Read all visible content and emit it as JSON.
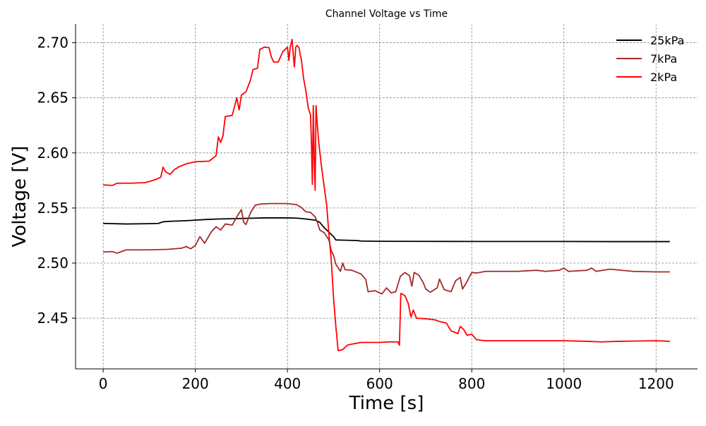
{
  "chart_data": {
    "type": "line",
    "title": "Channel Voltage vs Time",
    "xlabel": "Time [s]",
    "ylabel": "Voltage [V]",
    "xlim": [
      -60,
      1290
    ],
    "ylim": [
      2.404,
      2.717
    ],
    "xticks": [
      0,
      200,
      400,
      600,
      800,
      1000,
      1200
    ],
    "xtick_labels": [
      "0",
      "200",
      "400",
      "600",
      "800",
      "1000",
      "1200"
    ],
    "yticks": [
      2.45,
      2.5,
      2.55,
      2.6,
      2.65,
      2.7
    ],
    "ytick_labels": [
      "2.45",
      "2.50",
      "2.55",
      "2.60",
      "2.65",
      "2.70"
    ],
    "grid": true,
    "legend_position": "top-right",
    "series": [
      {
        "name": "25kPa",
        "color": "#000000",
        "points": [
          [
            0,
            2.536
          ],
          [
            50,
            2.5355
          ],
          [
            100,
            2.5358
          ],
          [
            120,
            2.536
          ],
          [
            130,
            2.5375
          ],
          [
            150,
            2.538
          ],
          [
            180,
            2.5385
          ],
          [
            200,
            2.539
          ],
          [
            220,
            2.5395
          ],
          [
            250,
            2.54
          ],
          [
            300,
            2.5405
          ],
          [
            350,
            2.541
          ],
          [
            380,
            2.541
          ],
          [
            400,
            2.541
          ],
          [
            420,
            2.5408
          ],
          [
            440,
            2.54
          ],
          [
            460,
            2.539
          ],
          [
            470,
            2.537
          ],
          [
            480,
            2.532
          ],
          [
            490,
            2.528
          ],
          [
            495,
            2.526
          ],
          [
            500,
            2.524
          ],
          [
            505,
            2.521
          ],
          [
            520,
            2.5208
          ],
          [
            550,
            2.5205
          ],
          [
            560,
            2.52
          ],
          [
            600,
            2.5198
          ],
          [
            700,
            2.5197
          ],
          [
            800,
            2.5196
          ],
          [
            900,
            2.5196
          ],
          [
            1000,
            2.5196
          ],
          [
            1100,
            2.5195
          ],
          [
            1200,
            2.5195
          ],
          [
            1230,
            2.5195
          ]
        ]
      },
      {
        "name": "7kPa",
        "color": "#a52a2a",
        "points": [
          [
            0,
            2.51
          ],
          [
            20,
            2.5105
          ],
          [
            30,
            2.509
          ],
          [
            40,
            2.5105
          ],
          [
            50,
            2.512
          ],
          [
            100,
            2.512
          ],
          [
            140,
            2.5125
          ],
          [
            170,
            2.5135
          ],
          [
            180,
            2.515
          ],
          [
            190,
            2.513
          ],
          [
            200,
            2.516
          ],
          [
            210,
            2.524
          ],
          [
            220,
            2.518
          ],
          [
            235,
            2.5285
          ],
          [
            245,
            2.533
          ],
          [
            255,
            2.53
          ],
          [
            265,
            2.5355
          ],
          [
            280,
            2.5345
          ],
          [
            290,
            2.542
          ],
          [
            300,
            2.5485
          ],
          [
            305,
            2.537
          ],
          [
            310,
            2.535
          ],
          [
            320,
            2.546
          ],
          [
            330,
            2.5525
          ],
          [
            340,
            2.5535
          ],
          [
            360,
            2.554
          ],
          [
            400,
            2.554
          ],
          [
            420,
            2.553
          ],
          [
            430,
            2.5505
          ],
          [
            440,
            2.5465
          ],
          [
            450,
            2.546
          ],
          [
            460,
            2.542
          ],
          [
            465,
            2.537
          ],
          [
            470,
            2.53
          ],
          [
            480,
            2.5275
          ],
          [
            490,
            2.521
          ],
          [
            495,
            2.511
          ],
          [
            500,
            2.507
          ],
          [
            505,
            2.499
          ],
          [
            515,
            2.4925
          ],
          [
            520,
            2.5
          ],
          [
            525,
            2.494
          ],
          [
            540,
            2.4935
          ],
          [
            560,
            2.49
          ],
          [
            570,
            2.485
          ],
          [
            575,
            2.474
          ],
          [
            590,
            2.475
          ],
          [
            605,
            2.472
          ],
          [
            615,
            2.4775
          ],
          [
            625,
            2.473
          ],
          [
            635,
            2.474
          ],
          [
            645,
            2.488
          ],
          [
            655,
            2.4915
          ],
          [
            665,
            2.4885
          ],
          [
            670,
            2.479
          ],
          [
            675,
            2.4915
          ],
          [
            685,
            2.489
          ],
          [
            695,
            2.482
          ],
          [
            700,
            2.4765
          ],
          [
            710,
            2.4735
          ],
          [
            725,
            2.4775
          ],
          [
            730,
            2.4855
          ],
          [
            740,
            2.476
          ],
          [
            755,
            2.474
          ],
          [
            765,
            2.484
          ],
          [
            775,
            2.487
          ],
          [
            780,
            2.4765
          ],
          [
            790,
            2.4835
          ],
          [
            800,
            2.4915
          ],
          [
            810,
            2.491
          ],
          [
            830,
            2.4925
          ],
          [
            900,
            2.4925
          ],
          [
            940,
            2.4935
          ],
          [
            960,
            2.4925
          ],
          [
            990,
            2.4935
          ],
          [
            1000,
            2.4955
          ],
          [
            1010,
            2.4925
          ],
          [
            1050,
            2.4935
          ],
          [
            1060,
            2.4955
          ],
          [
            1070,
            2.4925
          ],
          [
            1100,
            2.4945
          ],
          [
            1150,
            2.4925
          ],
          [
            1200,
            2.492
          ],
          [
            1230,
            2.492
          ]
        ]
      },
      {
        "name": "2kPa",
        "color": "#ff0000",
        "points": [
          [
            0,
            2.571
          ],
          [
            20,
            2.5705
          ],
          [
            30,
            2.5725
          ],
          [
            60,
            2.5725
          ],
          [
            90,
            2.573
          ],
          [
            100,
            2.574
          ],
          [
            115,
            2.576
          ],
          [
            125,
            2.578
          ],
          [
            130,
            2.587
          ],
          [
            135,
            2.583
          ],
          [
            145,
            2.5805
          ],
          [
            155,
            2.585
          ],
          [
            165,
            2.5875
          ],
          [
            180,
            2.59
          ],
          [
            200,
            2.592
          ],
          [
            230,
            2.5925
          ],
          [
            245,
            2.5975
          ],
          [
            250,
            2.6145
          ],
          [
            255,
            2.6095
          ],
          [
            260,
            2.6155
          ],
          [
            265,
            2.633
          ],
          [
            280,
            2.634
          ],
          [
            285,
            2.642
          ],
          [
            290,
            2.65
          ],
          [
            295,
            2.639
          ],
          [
            300,
            2.6525
          ],
          [
            310,
            2.6555
          ],
          [
            320,
            2.6665
          ],
          [
            325,
            2.6755
          ],
          [
            335,
            2.677
          ],
          [
            340,
            2.694
          ],
          [
            350,
            2.696
          ],
          [
            360,
            2.6955
          ],
          [
            365,
            2.687
          ],
          [
            370,
            2.6825
          ],
          [
            380,
            2.6825
          ],
          [
            390,
            2.692
          ],
          [
            400,
            2.696
          ],
          [
            403,
            2.684
          ],
          [
            406,
            2.696
          ],
          [
            410,
            2.703
          ],
          [
            413,
            2.687
          ],
          [
            415,
            2.678
          ],
          [
            418,
            2.696
          ],
          [
            421,
            2.6975
          ],
          [
            425,
            2.6955
          ],
          [
            428,
            2.6885
          ],
          [
            430,
            2.685
          ],
          [
            435,
            2.6675
          ],
          [
            440,
            2.656
          ],
          [
            445,
            2.641
          ],
          [
            450,
            2.6345
          ],
          [
            452,
            2.609
          ],
          [
            454,
            2.5715
          ],
          [
            456,
            2.643
          ],
          [
            458,
            2.595
          ],
          [
            460,
            2.566
          ],
          [
            462,
            2.643
          ],
          [
            464,
            2.6295
          ],
          [
            468,
            2.609
          ],
          [
            473,
            2.5905
          ],
          [
            478,
            2.5745
          ],
          [
            485,
            2.553
          ],
          [
            490,
            2.526
          ],
          [
            495,
            2.503
          ],
          [
            500,
            2.4685
          ],
          [
            505,
            2.4425
          ],
          [
            508,
            2.4295
          ],
          [
            510,
            2.4205
          ],
          [
            520,
            2.4215
          ],
          [
            530,
            2.4255
          ],
          [
            540,
            2.4265
          ],
          [
            560,
            2.428
          ],
          [
            600,
            2.428
          ],
          [
            620,
            2.4285
          ],
          [
            640,
            2.4285
          ],
          [
            643,
            2.4255
          ],
          [
            646,
            2.4725
          ],
          [
            655,
            2.4705
          ],
          [
            662,
            2.4635
          ],
          [
            668,
            2.451
          ],
          [
            673,
            2.4575
          ],
          [
            680,
            2.45
          ],
          [
            700,
            2.4495
          ],
          [
            720,
            2.4485
          ],
          [
            730,
            2.447
          ],
          [
            745,
            2.4455
          ],
          [
            755,
            2.4385
          ],
          [
            770,
            2.436
          ],
          [
            775,
            2.4425
          ],
          [
            782,
            2.44
          ],
          [
            790,
            2.4345
          ],
          [
            800,
            2.4355
          ],
          [
            810,
            2.4305
          ],
          [
            830,
            2.4295
          ],
          [
            900,
            2.4295
          ],
          [
            1000,
            2.4295
          ],
          [
            1050,
            2.429
          ],
          [
            1080,
            2.4285
          ],
          [
            1120,
            2.429
          ],
          [
            1200,
            2.4295
          ],
          [
            1230,
            2.429
          ]
        ]
      }
    ]
  }
}
